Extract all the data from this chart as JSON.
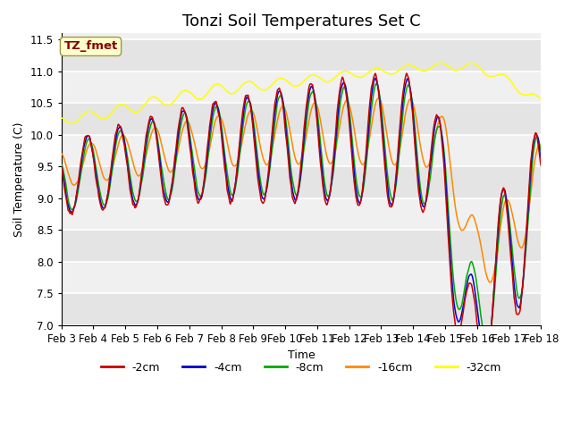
{
  "title": "Tonzi Soil Temperatures Set C",
  "xlabel": "Time",
  "ylabel": "Soil Temperature (C)",
  "ylim": [
    7.0,
    11.6
  ],
  "yticks": [
    7.0,
    7.5,
    8.0,
    8.5,
    9.0,
    9.5,
    10.0,
    10.5,
    11.0,
    11.5
  ],
  "xtick_labels": [
    "Feb 3",
    "Feb 4",
    "Feb 5",
    "Feb 6",
    "Feb 7",
    "Feb 8",
    "Feb 9",
    "Feb 10",
    "Feb 11",
    "Feb 12",
    "Feb 13",
    "Feb 14",
    "Feb 15",
    "Feb 16",
    "Feb 17",
    "Feb 18"
  ],
  "colors": {
    "2cm": "#cc0000",
    "4cm": "#0000cc",
    "8cm": "#00aa00",
    "16cm": "#ff8800",
    "32cm": "#ffff00"
  },
  "legend_labels": [
    "-2cm",
    "-4cm",
    "-8cm",
    "-16cm",
    "-32cm"
  ],
  "annotation_text": "TZ_fmet",
  "annotation_color": "#880000",
  "annotation_bg": "#ffffcc",
  "annotation_edge": "#999944",
  "plot_bg": "#f0f0f0",
  "grid_color": "#ffffff",
  "stripe_color": "#dddddd",
  "title_fontsize": 13,
  "label_fontsize": 9,
  "tick_fontsize": 8.5
}
